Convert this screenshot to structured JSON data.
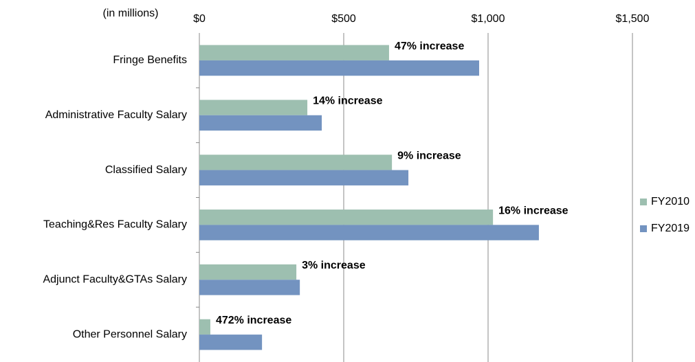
{
  "chart_data": {
    "type": "hbar",
    "axis_note": "(in millions)",
    "categories": [
      "Fringe Benefits",
      "Administrative Faculty Salary",
      "Classified Salary",
      "Teaching&Res Faculty Salary",
      "Adjunct Faculty&GTAs Salary",
      "Other Personnel Salary"
    ],
    "series": [
      {
        "name": "FY2010",
        "color": "#9dbfb0",
        "values": [
          657,
          374,
          667,
          1017,
          336,
          38
        ]
      },
      {
        "name": "FY2019",
        "color": "#7393c0",
        "values": [
          969,
          424,
          724,
          1176,
          348,
          217
        ]
      }
    ],
    "annotations": [
      "47% increase",
      "14% increase",
      "9% increase",
      "16% increase",
      "3% increase",
      "472% increase"
    ],
    "xlim": [
      0,
      1500
    ],
    "xticks": [
      {
        "value": 0,
        "label": "$0"
      },
      {
        "value": 500,
        "label": "$500"
      },
      {
        "value": 1000,
        "label": "$1,000"
      },
      {
        "value": 1500,
        "label": "$1,500"
      }
    ],
    "grid": true,
    "legend": "right"
  }
}
